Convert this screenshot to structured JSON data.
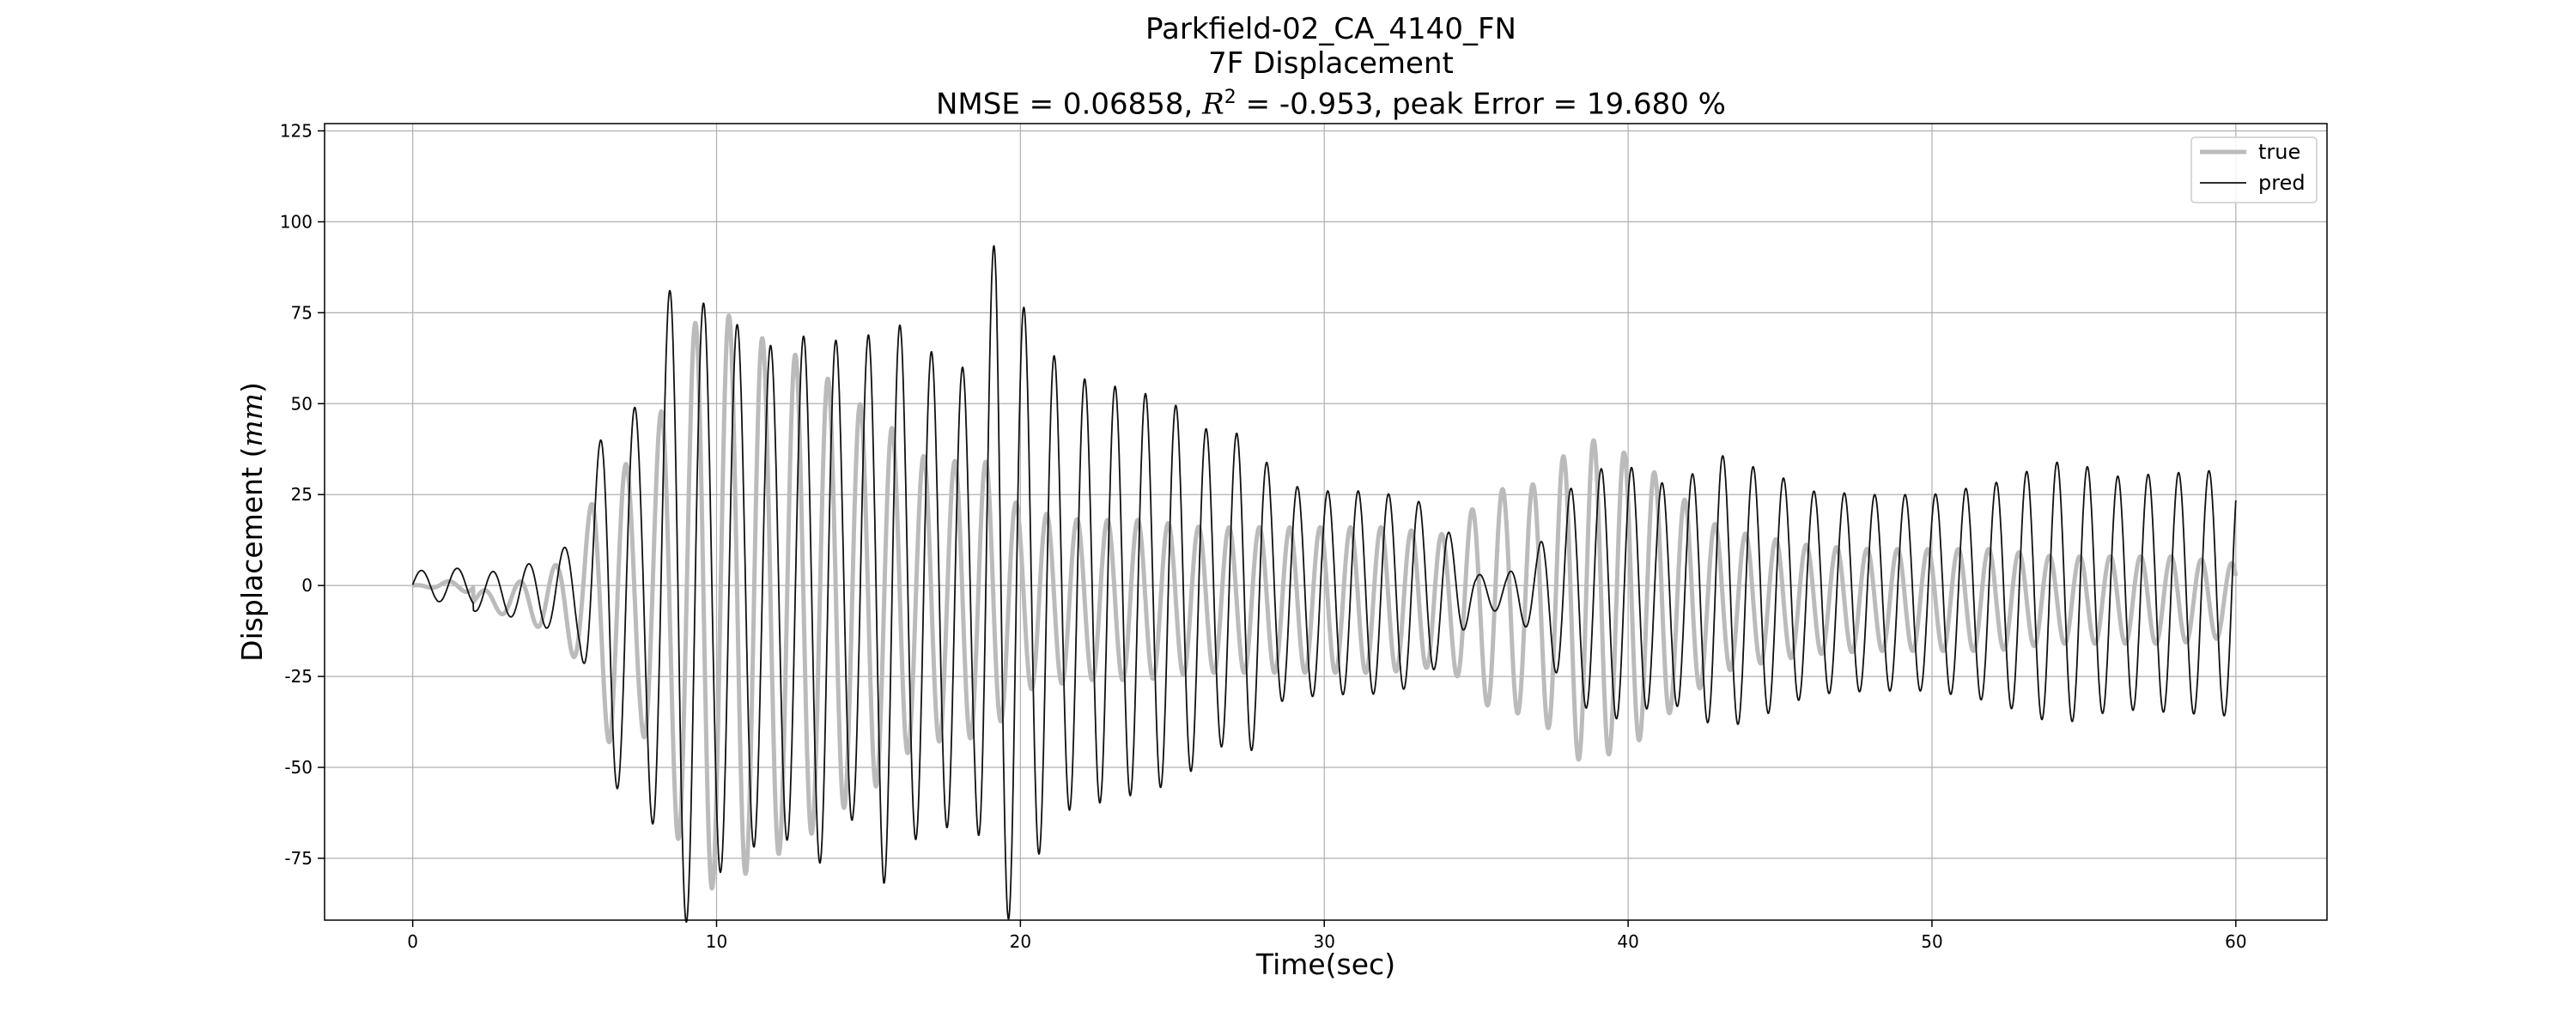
{
  "chart_data": {
    "type": "line",
    "title_line1": "Parkfield-02_CA_4140_FN",
    "title_line2": "7F Displacement",
    "title_metrics": {
      "nmse_text": "NMSE = 0.06858, ",
      "r2_symbol": "R",
      "r2_exp": "2",
      "r2_rest": " = -0.953, peak Error = 19.680 %"
    },
    "xlabel": "Time(sec)",
    "ylabel_prefix": "Displacement (",
    "ylabel_unit": "mm",
    "ylabel_suffix": ")",
    "xlim": [
      -2.9,
      63
    ],
    "ylim": [
      -92,
      127
    ],
    "xticks": [
      0,
      10,
      20,
      30,
      40,
      50,
      60
    ],
    "yticks": [
      -75,
      -50,
      -25,
      0,
      25,
      50,
      75,
      100,
      125
    ],
    "grid": true,
    "legend_position": "top-right",
    "series": [
      {
        "name": "true",
        "color": "#bbbbbb",
        "envelope": [
          [
            0,
            0
          ],
          [
            2,
            2
          ],
          [
            3.5,
            5
          ],
          [
            4.8,
            10
          ],
          [
            5.5,
            18
          ],
          [
            6.5,
            40
          ],
          [
            7.5,
            35
          ],
          [
            8.7,
            65
          ],
          [
            9.5,
            80
          ],
          [
            10.5,
            78
          ],
          [
            11.5,
            72
          ],
          [
            12.5,
            68
          ],
          [
            13.5,
            62
          ],
          [
            14.5,
            55
          ],
          [
            15.5,
            50
          ],
          [
            16.5,
            40
          ],
          [
            18,
            38
          ],
          [
            19,
            38
          ],
          [
            20,
            25
          ],
          [
            22,
            22
          ],
          [
            24,
            22
          ],
          [
            26,
            20
          ],
          [
            28,
            20
          ],
          [
            30,
            20
          ],
          [
            32,
            20
          ],
          [
            34,
            18
          ],
          [
            35.5,
            30
          ],
          [
            37,
            32
          ],
          [
            38.5,
            45
          ],
          [
            39.5,
            42
          ],
          [
            40.5,
            38
          ],
          [
            41.5,
            30
          ],
          [
            43,
            20
          ],
          [
            44,
            18
          ],
          [
            46,
            15
          ],
          [
            48,
            14
          ],
          [
            50,
            14
          ],
          [
            52,
            14
          ],
          [
            54,
            12
          ],
          [
            56,
            12
          ],
          [
            58,
            12
          ],
          [
            60,
            10
          ]
        ]
      },
      {
        "name": "pred",
        "color": "#111111",
        "envelope": [
          [
            0,
            4
          ],
          [
            2,
            5
          ],
          [
            3.5,
            7
          ],
          [
            4.5,
            10
          ],
          [
            5.5,
            15
          ],
          [
            6.5,
            55
          ],
          [
            7.5,
            50
          ],
          [
            8.8,
            95
          ],
          [
            9.5,
            80
          ],
          [
            10.5,
            75
          ],
          [
            11.5,
            68
          ],
          [
            12.5,
            68
          ],
          [
            13.5,
            75
          ],
          [
            14.5,
            62
          ],
          [
            15.5,
            80
          ],
          [
            16.5,
            68
          ],
          [
            17.5,
            65
          ],
          [
            18.5,
            60
          ],
          [
            19.2,
            100
          ],
          [
            20,
            80
          ],
          [
            21.5,
            60
          ],
          [
            22.5,
            58
          ],
          [
            23.5,
            56
          ],
          [
            24.5,
            54
          ],
          [
            25.5,
            50
          ],
          [
            26.5,
            42
          ],
          [
            27.5,
            45
          ],
          [
            28.5,
            30
          ],
          [
            30,
            28
          ],
          [
            31.5,
            28
          ],
          [
            33,
            26
          ],
          [
            34,
            18
          ],
          [
            35,
            5
          ],
          [
            36,
            5
          ],
          [
            37,
            12
          ],
          [
            38,
            28
          ],
          [
            39,
            34
          ],
          [
            40,
            35
          ],
          [
            41,
            30
          ],
          [
            42,
            32
          ],
          [
            43,
            38
          ],
          [
            44,
            35
          ],
          [
            45,
            32
          ],
          [
            46,
            28
          ],
          [
            48,
            27
          ],
          [
            50,
            27
          ],
          [
            52,
            30
          ],
          [
            53,
            33
          ],
          [
            54,
            36
          ],
          [
            55,
            35
          ],
          [
            56,
            32
          ],
          [
            58,
            33
          ],
          [
            60,
            34
          ]
        ]
      }
    ]
  }
}
